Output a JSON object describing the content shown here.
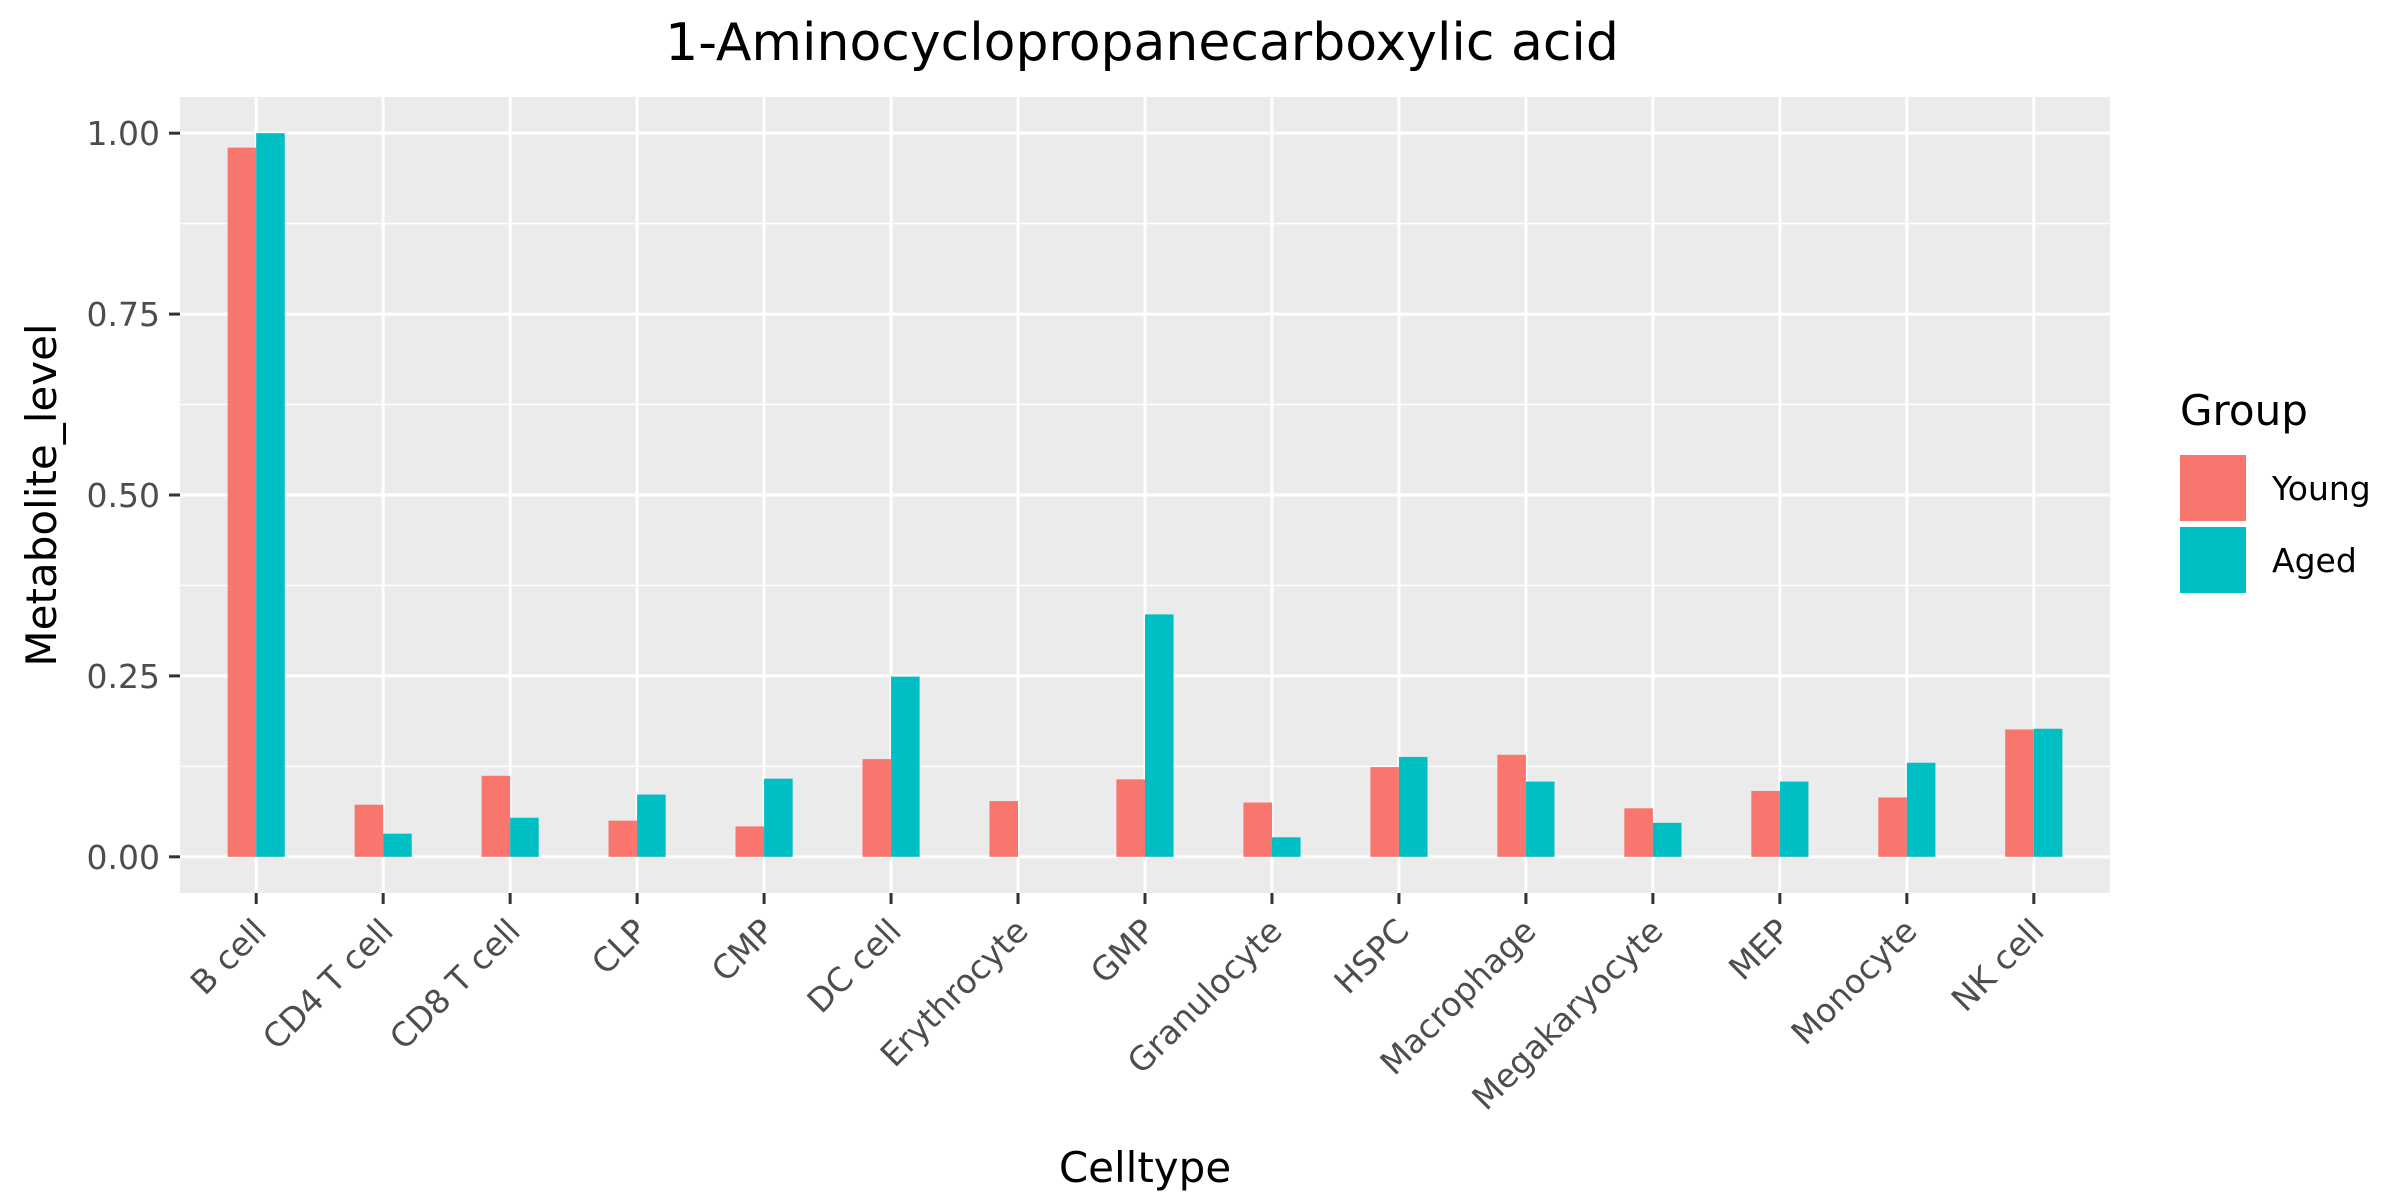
{
  "chart_data": {
    "type": "bar",
    "title": "1-Aminocyclopropanecarboxylic acid",
    "xlabel": "Celltype",
    "ylabel": "Metabolite_level",
    "categories": [
      "B cell",
      "CD4 T cell",
      "CD8 T cell",
      "CLP",
      "CMP",
      "DC cell",
      "Erythrocyte",
      "GMP",
      "Granulocyte",
      "HSPC",
      "Macrophage",
      "Megakaryocyte",
      "MEP",
      "Monocyte",
      "NK cell"
    ],
    "series": [
      {
        "name": "Young",
        "color": "#F8766D",
        "values": [
          0.98,
          0.072,
          0.112,
          0.05,
          0.042,
          0.135,
          0.077,
          0.107,
          0.075,
          0.124,
          0.141,
          0.067,
          0.091,
          0.082,
          0.176
        ]
      },
      {
        "name": "Aged",
        "color": "#00BFC4",
        "values": [
          1.0,
          0.032,
          0.054,
          0.086,
          0.108,
          0.249,
          null,
          0.335,
          0.027,
          0.138,
          0.104,
          0.047,
          0.104,
          0.13,
          0.177
        ]
      }
    ],
    "ylim": [
      -0.05,
      1.05
    ],
    "yticks": [
      0.0,
      0.25,
      0.5,
      0.75,
      1.0
    ],
    "ytick_labels": [
      "0.00",
      "0.25",
      "0.50",
      "0.75",
      "1.00"
    ],
    "grid": true,
    "legend": {
      "title": "Group",
      "position": "right"
    },
    "panel_color": "#EBEBEB"
  }
}
